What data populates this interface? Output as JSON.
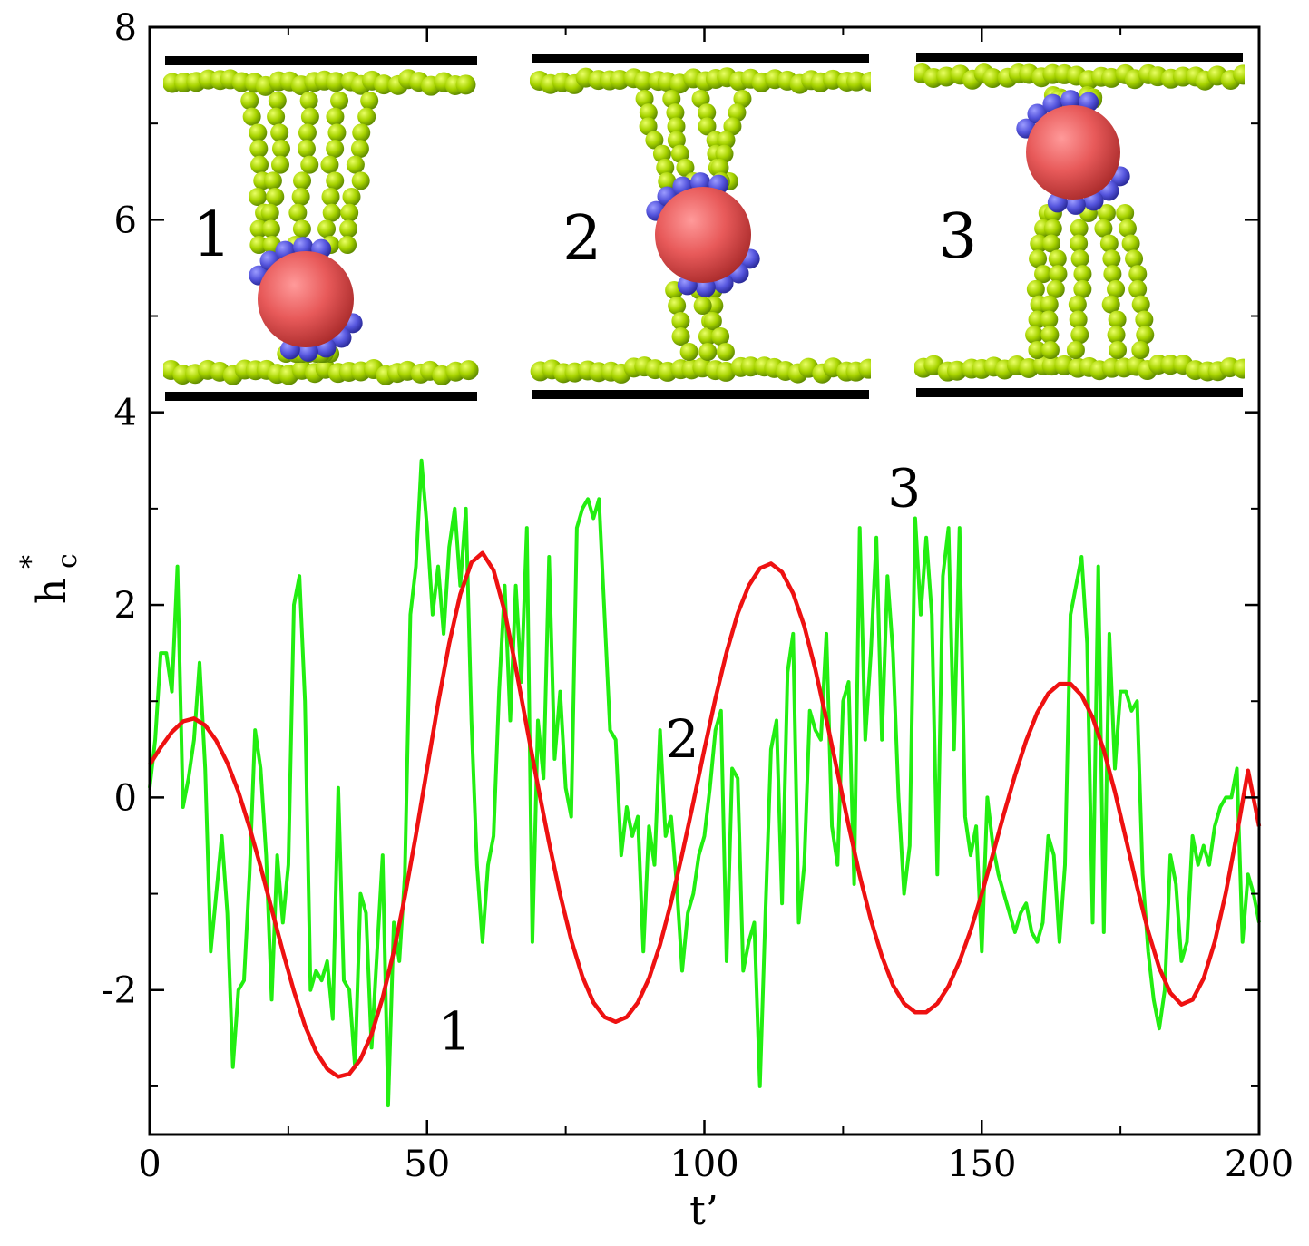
{
  "chart_data": {
    "type": "line",
    "xlabel": "t’",
    "ylabel": "h",
    "ylabel_sub": "c",
    "ylabel_sup": "*",
    "xlim": [
      0,
      200
    ],
    "ylim": [
      -3.5,
      8
    ],
    "xticks": [
      0,
      50,
      100,
      150,
      200
    ],
    "xtick_labels": [
      "0",
      "50",
      "100",
      "150",
      "200"
    ],
    "yticks": [
      -2,
      0,
      2,
      4,
      6,
      8
    ],
    "ytick_labels": [
      "-2",
      "0",
      "2",
      "4",
      "6",
      "8"
    ],
    "grid": false,
    "series": [
      {
        "color": "#22ee11",
        "x": [
          0,
          1,
          2,
          3,
          4,
          5,
          6,
          7,
          8,
          9,
          10,
          11,
          12,
          13,
          14,
          15,
          16,
          17,
          18,
          19,
          20,
          21,
          22,
          23,
          24,
          25,
          26,
          27,
          28,
          29,
          30,
          31,
          32,
          33,
          34,
          35,
          36,
          37,
          38,
          39,
          40,
          41,
          42,
          43,
          44,
          45,
          46,
          47,
          48,
          49,
          50,
          51,
          52,
          53,
          54,
          55,
          56,
          57,
          58,
          59,
          60,
          61,
          62,
          63,
          64,
          65,
          66,
          67,
          68,
          69,
          70,
          71,
          72,
          73,
          74,
          75,
          76,
          77,
          78,
          79,
          80,
          81,
          82,
          83,
          84,
          85,
          86,
          87,
          88,
          89,
          90,
          91,
          92,
          93,
          94,
          95,
          96,
          97,
          98,
          99,
          100,
          101,
          102,
          103,
          104,
          105,
          106,
          107,
          108,
          109,
          110,
          111,
          112,
          113,
          114,
          115,
          116,
          117,
          118,
          119,
          120,
          121,
          122,
          123,
          124,
          125,
          126,
          127,
          128,
          129,
          130,
          131,
          132,
          133,
          134,
          135,
          136,
          137,
          138,
          139,
          140,
          141,
          142,
          143,
          144,
          145,
          146,
          147,
          148,
          149,
          150,
          151,
          152,
          153,
          154,
          155,
          156,
          157,
          158,
          159,
          160,
          161,
          162,
          163,
          164,
          165,
          166,
          167,
          168,
          169,
          170,
          171,
          172,
          173,
          174,
          175,
          176,
          177,
          178,
          179,
          180,
          181,
          182,
          183,
          184,
          185,
          186,
          187,
          188,
          189,
          190,
          191,
          192,
          193,
          194,
          195,
          196,
          197,
          198,
          199,
          200
        ],
        "y": [
          0.1,
          0.6,
          1.5,
          1.5,
          1.1,
          2.4,
          -0.1,
          0.2,
          0.6,
          1.4,
          0.3,
          -1.6,
          -1.0,
          -0.4,
          -1.2,
          -2.8,
          -2.0,
          -1.9,
          -0.8,
          0.7,
          0.3,
          -0.6,
          -2.1,
          -0.6,
          -1.3,
          -0.7,
          2.0,
          2.3,
          1.0,
          -2.0,
          -1.8,
          -1.9,
          -1.7,
          -2.3,
          0.1,
          -1.9,
          -2.0,
          -2.8,
          -1.0,
          -1.2,
          -2.6,
          -1.6,
          -0.6,
          -3.2,
          -1.3,
          -1.7,
          -0.8,
          1.9,
          2.4,
          3.5,
          2.8,
          1.9,
          2.4,
          1.7,
          2.6,
          3.0,
          2.2,
          3.0,
          0.8,
          -0.7,
          -1.5,
          -0.7,
          -0.4,
          1.1,
          2.2,
          0.8,
          2.2,
          1.2,
          2.8,
          -1.5,
          0.8,
          0.2,
          2.5,
          0.4,
          1.1,
          0.1,
          -0.2,
          2.8,
          3.0,
          3.1,
          2.9,
          3.1,
          1.9,
          0.7,
          0.6,
          -0.6,
          -0.1,
          -0.4,
          -0.2,
          -1.6,
          -0.3,
          -0.7,
          0.7,
          -0.4,
          -0.2,
          -0.9,
          -1.8,
          -1.2,
          -1.0,
          -0.6,
          -0.4,
          0.1,
          0.7,
          0.9,
          -1.7,
          0.3,
          0.2,
          -1.8,
          -1.5,
          -1.3,
          -3.0,
          -1.2,
          0.5,
          0.8,
          -1.1,
          1.3,
          1.7,
          -1.3,
          -0.7,
          0.9,
          0.7,
          0.6,
          1.7,
          -0.3,
          -0.7,
          1.0,
          1.2,
          -0.9,
          2.8,
          0.6,
          1.5,
          2.7,
          0.6,
          2.3,
          1.5,
          0.0,
          -1.0,
          -0.5,
          2.9,
          1.9,
          2.7,
          1.9,
          -0.8,
          2.3,
          2.8,
          0.5,
          2.8,
          -0.2,
          -0.6,
          -0.3,
          -1.6,
          0.0,
          -0.5,
          -0.8,
          -1.0,
          -1.2,
          -1.4,
          -1.2,
          -1.1,
          -1.4,
          -1.5,
          -1.3,
          -0.4,
          -0.6,
          -1.5,
          -0.7,
          1.9,
          2.2,
          2.5,
          1.6,
          -1.3,
          2.4,
          -1.4,
          1.7,
          0.3,
          1.1,
          1.1,
          0.9,
          1.0,
          -0.8,
          -1.6,
          -2.1,
          -2.4,
          -2.0,
          -0.6,
          -0.9,
          -1.7,
          -1.5,
          -0.4,
          -0.7,
          -0.5,
          -0.7,
          -0.3,
          -0.1,
          0.0,
          0.0,
          0.3,
          -1.5,
          -0.8,
          -1.0,
          -1.3
        ]
      },
      {
        "color": "#ee1111",
        "x": [
          0,
          2,
          4,
          6,
          8,
          10,
          12,
          14,
          16,
          18,
          20,
          22,
          24,
          26,
          28,
          30,
          32,
          34,
          36,
          38,
          40,
          42,
          44,
          46,
          48,
          50,
          52,
          54,
          56,
          58,
          60,
          62,
          64,
          66,
          68,
          70,
          72,
          74,
          76,
          78,
          80,
          82,
          84,
          86,
          88,
          90,
          92,
          94,
          96,
          98,
          100,
          102,
          104,
          106,
          108,
          110,
          112,
          114,
          116,
          118,
          120,
          122,
          124,
          126,
          128,
          130,
          132,
          134,
          136,
          138,
          140,
          142,
          144,
          146,
          148,
          150,
          152,
          154,
          156,
          158,
          160,
          162,
          164,
          166,
          168,
          170,
          172,
          174,
          176,
          178,
          180,
          182,
          184,
          186,
          188,
          190,
          192,
          194,
          196,
          198,
          200
        ],
        "y": [
          0.34,
          0.52,
          0.68,
          0.79,
          0.82,
          0.75,
          0.59,
          0.36,
          0.06,
          -0.31,
          -0.72,
          -1.16,
          -1.6,
          -2.01,
          -2.37,
          -2.64,
          -2.82,
          -2.9,
          -2.87,
          -2.72,
          -2.46,
          -2.08,
          -1.6,
          -1.03,
          -0.39,
          0.3,
          0.98,
          1.6,
          2.11,
          2.44,
          2.54,
          2.36,
          1.93,
          1.35,
          0.73,
          0.12,
          -0.47,
          -1.01,
          -1.48,
          -1.86,
          -2.13,
          -2.28,
          -2.33,
          -2.28,
          -2.13,
          -1.88,
          -1.53,
          -1.09,
          -0.59,
          -0.05,
          0.5,
          1.03,
          1.51,
          1.91,
          2.2,
          2.38,
          2.43,
          2.34,
          2.12,
          1.78,
          1.33,
          0.81,
          0.26,
          -0.29,
          -0.81,
          -1.27,
          -1.65,
          -1.95,
          -2.14,
          -2.23,
          -2.23,
          -2.14,
          -1.96,
          -1.7,
          -1.38,
          -1.0,
          -0.59,
          -0.17,
          0.23,
          0.59,
          0.88,
          1.08,
          1.18,
          1.18,
          1.06,
          0.83,
          0.49,
          0.06,
          -0.43,
          -0.93,
          -1.39,
          -1.77,
          -2.03,
          -2.15,
          -2.1,
          -1.88,
          -1.5,
          -0.99,
          -0.38,
          0.28,
          -0.3
        ]
      }
    ],
    "annotations": [
      {
        "text": "1",
        "x": 52,
        "y": -2.62
      },
      {
        "text": "2",
        "x": 93,
        "y": 0.42
      },
      {
        "text": "3",
        "x": 133,
        "y": 3.02
      }
    ],
    "inset_labels": [
      "1",
      "2",
      "3"
    ]
  }
}
